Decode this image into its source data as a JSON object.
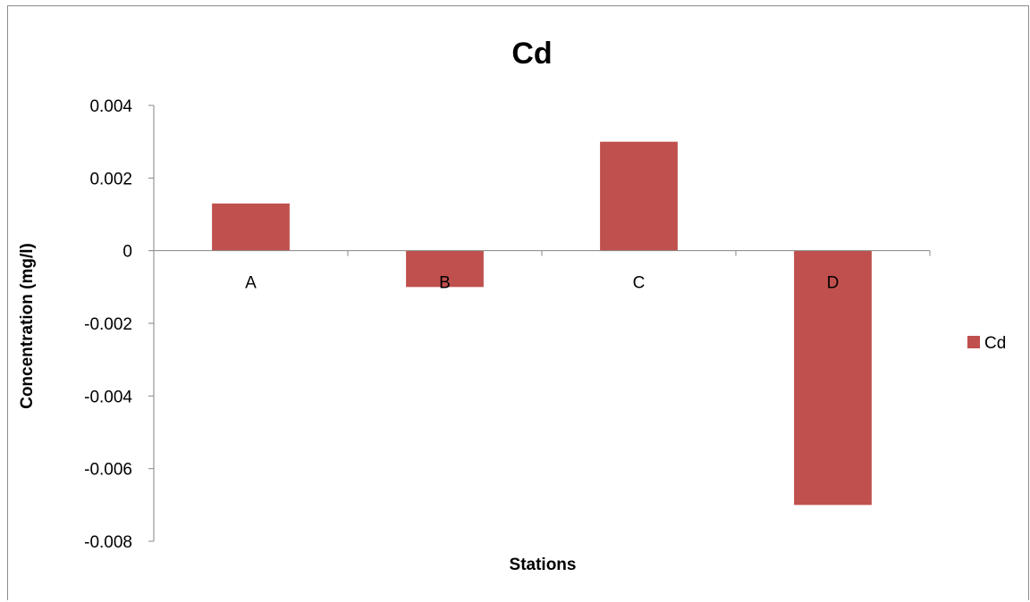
{
  "chart_data": {
    "type": "bar",
    "title": "Cd",
    "xlabel": "Stations",
    "ylabel": "Concentration (mg/l)",
    "categories": [
      "A",
      "B",
      "C",
      "D"
    ],
    "series": [
      {
        "name": "Cd",
        "values": [
          0.0013,
          -0.001,
          0.003,
          -0.007
        ]
      }
    ],
    "ylim": [
      -0.008,
      0.004
    ],
    "yticks": [
      "0.004",
      "0.002",
      "0",
      "-0.002",
      "-0.004",
      "-0.006",
      "-0.008"
    ],
    "ytick_values": [
      0.004,
      0.002,
      0,
      -0.002,
      -0.004,
      -0.006,
      -0.008
    ],
    "grid": false,
    "legend_position": "right",
    "colors": {
      "bar": "#c0504d",
      "axis": "#868686"
    }
  }
}
